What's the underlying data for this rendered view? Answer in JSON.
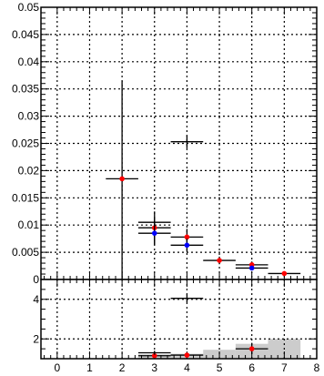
{
  "chart_data": [
    {
      "type": "scatter",
      "panel": "top",
      "title": "",
      "xlabel": "",
      "ylabel": "",
      "xlim": [
        -0.5,
        8
      ],
      "ylim": [
        0,
        0.05
      ],
      "grid": true,
      "x_ticks": [
        0,
        1,
        2,
        3,
        4,
        5,
        6,
        7,
        8
      ],
      "y_ticks": [
        0,
        0.005,
        0.01,
        0.015,
        0.02,
        0.025,
        0.03,
        0.035,
        0.04,
        0.045,
        0.05
      ],
      "y_tick_labels": [
        "0",
        "0.005",
        "0.01",
        "0.015",
        "0.02",
        "0.025",
        "0.03",
        "0.035",
        "0.04",
        "0.045",
        "0.05"
      ],
      "series": [
        {
          "marker_color": "#ff0000",
          "points": [
            {
              "x": 2,
              "y": 0.0185,
              "xerr": 0.5,
              "yerr_low": 0.0185,
              "yerr_high": 0.018
            },
            {
              "x": 3,
              "y": 0.0095,
              "xerr": 0.5,
              "yerr_low": 0.003,
              "yerr_high": 0.003
            },
            {
              "x": 4,
              "y": 0.0078,
              "xerr": 0.5,
              "yerr_low": 0.0015,
              "yerr_high": 0.0015
            },
            {
              "x": 5,
              "y": 0.0035,
              "xerr": 0.5,
              "yerr_low": 0.0007,
              "yerr_high": 0.0007
            },
            {
              "x": 6,
              "y": 0.0027,
              "xerr": 0.5,
              "yerr_low": 0.0006,
              "yerr_high": 0.0006
            },
            {
              "x": 7,
              "y": 0.0011,
              "xerr": 0.5,
              "yerr_low": 0.0003,
              "yerr_high": 0.0003
            }
          ]
        },
        {
          "marker_color": "#0000ff",
          "points": [
            {
              "x": 3,
              "y": 0.0085,
              "xerr": 0.5,
              "yerr_low": 0.0022,
              "yerr_high": 0.0022
            },
            {
              "x": 4,
              "y": 0.0063,
              "xerr": 0.5,
              "yerr_low": 0.0012,
              "yerr_high": 0.0012
            },
            {
              "x": 6,
              "y": 0.0021,
              "xerr": 0.5,
              "yerr_low": 0.0004,
              "yerr_high": 0.0004
            }
          ]
        },
        {
          "marker_color": "none",
          "points": [
            {
              "x": 3,
              "y": 0.0105,
              "xerr": 0.5,
              "yerr_low": 0.0008,
              "yerr_high": 0.0008
            },
            {
              "x": 4,
              "y": 0.0253,
              "xerr": 0.5,
              "yerr_low": 0.0012,
              "yerr_high": 0.0012
            }
          ]
        }
      ]
    },
    {
      "type": "scatter",
      "panel": "bottom",
      "title": "",
      "xlabel": "",
      "ylabel": "",
      "xlim": [
        -0.5,
        8
      ],
      "ylim": [
        1,
        5
      ],
      "grid": true,
      "x_ticks": [
        0,
        1,
        2,
        3,
        4,
        5,
        6,
        7,
        8
      ],
      "x_tick_labels": [
        "0",
        "1",
        "2",
        "3",
        "4",
        "5",
        "6",
        "7",
        "8"
      ],
      "y_ticks": [
        2,
        4
      ],
      "y_tick_labels": [
        "2",
        "4"
      ],
      "band": {
        "color": "#cccccc",
        "bins": [
          {
            "x0": 2.5,
            "x1": 3.5,
            "y_low": 1,
            "y_high": 1.22
          },
          {
            "x0": 3.5,
            "x1": 4.5,
            "y_low": 1,
            "y_high": 1.25
          },
          {
            "x0": 4.5,
            "x1": 5.5,
            "y_low": 1,
            "y_high": 1.45
          },
          {
            "x0": 5.5,
            "x1": 6.5,
            "y_low": 1,
            "y_high": 1.75
          },
          {
            "x0": 6.5,
            "x1": 7.5,
            "y_low": 1,
            "y_high": 2.0
          }
        ]
      },
      "series": [
        {
          "marker_color": "#ff0000",
          "points": [
            {
              "x": 3,
              "y": 1.15,
              "xerr": 0.5,
              "yerr_low": 0.15,
              "yerr_high": 0.15
            },
            {
              "x": 4,
              "y": 1.18,
              "xerr": 0.5,
              "yerr_low": 0.1,
              "yerr_high": 0.1
            },
            {
              "x": 6,
              "y": 1.5,
              "xerr": 0.5,
              "yerr_low": 0.25,
              "yerr_high": 0.3
            }
          ]
        },
        {
          "marker_color": "none",
          "points": [
            {
              "x": 3,
              "y": 1.3,
              "xerr": 0.5,
              "yerr_low": 0.1,
              "yerr_high": 0.1
            },
            {
              "x": 4,
              "y": 4.05,
              "xerr": 0.5,
              "yerr_low": 0.2,
              "yerr_high": 0.2
            }
          ]
        }
      ]
    }
  ]
}
